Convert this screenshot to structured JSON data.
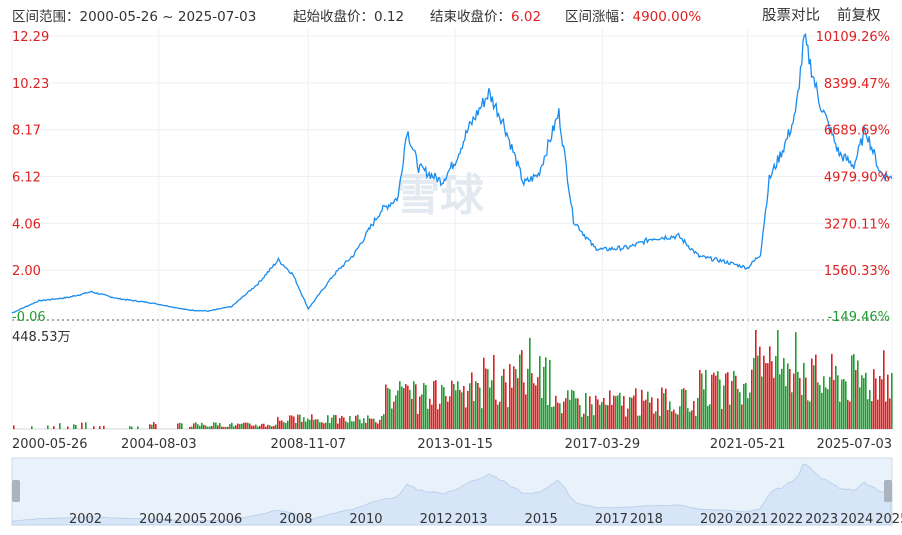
{
  "header": {
    "range_label": "区间范围：",
    "range_start": "2000-05-26",
    "range_sep": "~",
    "range_end": "2025-07-03",
    "start_price_label": "起始收盘价：",
    "start_price": "0.12",
    "end_price_label": "结束收盘价：",
    "end_price": "6.02",
    "change_label": "区间涨幅：",
    "change": "4900.00%",
    "compare_button": "股票对比",
    "adjust_button": "前复权"
  },
  "watermark": "雪球",
  "colors": {
    "price_line": "#1a8cf0",
    "up": "#e02020",
    "down": "#1f9d2f",
    "navigator_fill": "#d6e6f8",
    "navigator_bg": "#e9f1fb"
  },
  "chart_data": {
    "type": "line",
    "series": [
      {
        "points": [
          [
            "2000-05-26",
            0.12
          ],
          [
            "2001-03-01",
            0.65
          ],
          [
            "2002-01-01",
            0.8
          ],
          [
            "2002-09-01",
            1.05
          ],
          [
            "2003-06-01",
            0.75
          ],
          [
            "2004-06-01",
            0.55
          ],
          [
            "2005-06-01",
            0.25
          ],
          [
            "2006-01-01",
            0.2
          ],
          [
            "2006-09-01",
            0.4
          ],
          [
            "2007-06-01",
            1.4
          ],
          [
            "2008-01-01",
            2.45
          ],
          [
            "2008-06-01",
            1.8
          ],
          [
            "2008-11-07",
            0.3
          ],
          [
            "2009-08-01",
            1.8
          ],
          [
            "2010-03-01",
            2.7
          ],
          [
            "2010-12-01",
            4.6
          ],
          [
            "2011-06-01",
            5.2
          ],
          [
            "2011-09-01",
            8.2
          ],
          [
            "2012-01-01",
            6.5
          ],
          [
            "2012-09-01",
            5.9
          ],
          [
            "2013-01-15",
            6.8
          ],
          [
            "2013-06-01",
            8.2
          ],
          [
            "2014-01-01",
            9.8
          ],
          [
            "2014-06-01",
            8.5
          ],
          [
            "2015-01-01",
            5.8
          ],
          [
            "2015-06-01",
            6.2
          ],
          [
            "2016-01-01",
            8.9
          ],
          [
            "2016-06-01",
            4.2
          ],
          [
            "2017-01-01",
            3.0
          ],
          [
            "2017-03-29",
            2.9
          ],
          [
            "2018-01-01",
            3.0
          ],
          [
            "2018-09-01",
            3.4
          ],
          [
            "2019-06-01",
            3.5
          ],
          [
            "2020-01-01",
            2.6
          ],
          [
            "2020-09-01",
            2.4
          ],
          [
            "2021-05-21",
            2.1
          ],
          [
            "2021-10-01",
            2.7
          ],
          [
            "2022-01-01",
            6.0
          ],
          [
            "2022-06-01",
            7.4
          ],
          [
            "2022-10-01",
            8.8
          ],
          [
            "2023-01-01",
            12.2
          ],
          [
            "2023-06-01",
            9.5
          ],
          [
            "2024-01-01",
            7.1
          ],
          [
            "2024-06-01",
            6.6
          ],
          [
            "2024-10-01",
            8.2
          ],
          [
            "2025-03-01",
            6.3
          ],
          [
            "2025-07-03",
            6.02
          ]
        ]
      }
    ],
    "volume_max_label": "448.53万",
    "ylim": [
      -0.06,
      12.29
    ],
    "y_ticks_left": [
      "12.29",
      "10.23",
      "8.17",
      "6.12",
      "4.06",
      "2.00",
      "-0.06"
    ],
    "y_ticks_right": [
      "10109.26%",
      "8399.47%",
      "6689.69%",
      "4979.90%",
      "3270.11%",
      "1560.33%",
      "-149.46%"
    ],
    "x_ticks": [
      "2000-05-26",
      "2004-08-03",
      "2008-11-07",
      "2013-01-15",
      "2017-03-29",
      "2021-05-21",
      "2025-07-03"
    ],
    "navigator_years": [
      "2002",
      "2004",
      "2005",
      "2006",
      "2008",
      "2010",
      "2012",
      "2013",
      "2015",
      "2017",
      "2018",
      "2020",
      "2021",
      "2022",
      "2023",
      "2024",
      "2025"
    ],
    "grid": true
  }
}
